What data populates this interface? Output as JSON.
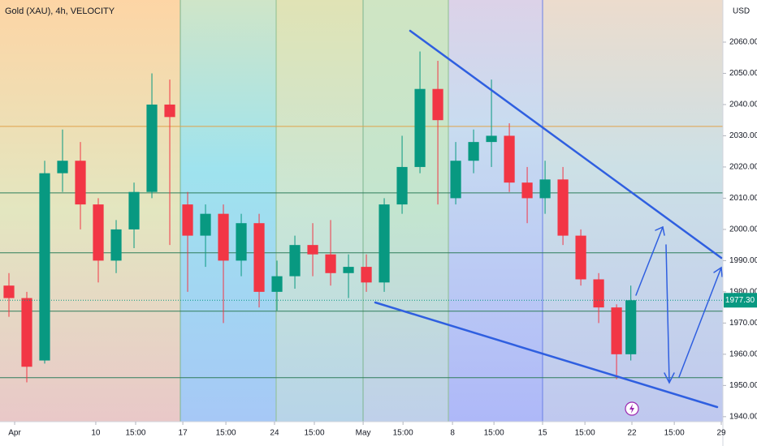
{
  "chart_data": {
    "type": "candlestick",
    "title": "Gold (XAU), 4h, VELOCITY",
    "currency": "USD",
    "last_price_label": "1977.30",
    "x": [
      0.5,
      1.5,
      2.5,
      3.5,
      4.5,
      5.5,
      6.5,
      7.5,
      8.5,
      9.5,
      10.5,
      11.5,
      12.5,
      13.5,
      14.5,
      15.5,
      16.5,
      17.5,
      18.5,
      19.5,
      20.5,
      21.5,
      22.5,
      23.5,
      24.5,
      25.5,
      26.5,
      27.5,
      28.5,
      29.5,
      30.5,
      31.5,
      32.5,
      33.5,
      34.5,
      35.3
    ],
    "open": [
      1982,
      1978,
      1958,
      2018,
      2022,
      2008,
      1990,
      2000,
      2012,
      2040,
      2008,
      1998,
      2005,
      1990,
      2002,
      1980,
      1985,
      1995,
      1992,
      1986,
      1988,
      1983,
      2008,
      2020,
      2045,
      2010,
      2022,
      2028,
      2030,
      2015,
      2010,
      2016,
      1998,
      1984,
      1975,
      1960
    ],
    "high": [
      1986,
      1980,
      2022,
      2032,
      2028,
      2010,
      2003,
      2015,
      2050,
      2048,
      2012,
      2008,
      2008,
      2005,
      2005,
      1990,
      1998,
      2002,
      2003,
      1992,
      1992,
      2010,
      2030,
      2057,
      2054,
      2028,
      2032,
      2048,
      2034,
      2020,
      2022,
      2020,
      2000,
      1986,
      1976,
      1982
    ],
    "low": [
      1972,
      1951,
      1957,
      2012,
      2000,
      1983,
      1986,
      1994,
      2010,
      1995,
      1980,
      1988,
      1970,
      1985,
      1975,
      1974,
      1981,
      1985,
      1982,
      1978,
      1980,
      1980,
      2005,
      2018,
      2008,
      2008,
      2018,
      2020,
      2012,
      2002,
      2005,
      1995,
      1982,
      1970,
      1952,
      1958
    ],
    "close": [
      1978,
      1956,
      2018,
      2022,
      2008,
      1990,
      2000,
      2012,
      2040,
      2036,
      1998,
      2005,
      1990,
      2002,
      1980,
      1985,
      1995,
      1992,
      1986,
      1988,
      1983,
      2008,
      2020,
      2045,
      2035,
      2022,
      2028,
      2030,
      2015,
      2010,
      2016,
      1998,
      1984,
      1975,
      1960,
      1977.3
    ],
    "up_color": "#089981",
    "down_color": "#f23645",
    "levels": [
      2033,
      2011.7,
      1992.5,
      1973.8,
      1952.5
    ],
    "level_color": "#2e7d5b",
    "xlim": [
      0,
      40.45
    ],
    "ylim": [
      1938.4,
      2073.5
    ],
    "xticks": [
      {
        "value": 0.82,
        "label": "Apr"
      },
      {
        "value": 5.36,
        "label": "10"
      },
      {
        "value": 7.59,
        "label": "15:00"
      },
      {
        "value": 10.23,
        "label": "17"
      },
      {
        "value": 12.64,
        "label": "15:00"
      },
      {
        "value": 15.36,
        "label": "24"
      },
      {
        "value": 17.59,
        "label": "15:00"
      },
      {
        "value": 20.32,
        "label": "May"
      },
      {
        "value": 22.55,
        "label": "15:00"
      },
      {
        "value": 25.32,
        "label": "8"
      },
      {
        "value": 27.64,
        "label": "15:00"
      },
      {
        "value": 30.36,
        "label": "15"
      },
      {
        "value": 32.73,
        "label": "15:00"
      },
      {
        "value": 35.36,
        "label": "22"
      },
      {
        "value": 37.73,
        "label": "15:00"
      },
      {
        "value": 40.36,
        "label": "29"
      }
    ],
    "yticks": [
      {
        "value": 1940,
        "label": "1940.00"
      },
      {
        "value": 1950,
        "label": "1950.00"
      },
      {
        "value": 1960,
        "label": "1960.00"
      },
      {
        "value": 1970,
        "label": "1970.00"
      },
      {
        "value": 1980,
        "label": "1980.00"
      },
      {
        "value": 1990,
        "label": "1990.00"
      },
      {
        "value": 2000,
        "label": "2000.00"
      },
      {
        "value": 2010,
        "label": "2010.00"
      },
      {
        "value": 2020,
        "label": "2020.00"
      },
      {
        "value": 2030,
        "label": "2030.00"
      },
      {
        "value": 2040,
        "label": "2040.00"
      },
      {
        "value": 2050,
        "label": "2050.00"
      },
      {
        "value": 2060,
        "label": "2060.00"
      }
    ]
  }
}
